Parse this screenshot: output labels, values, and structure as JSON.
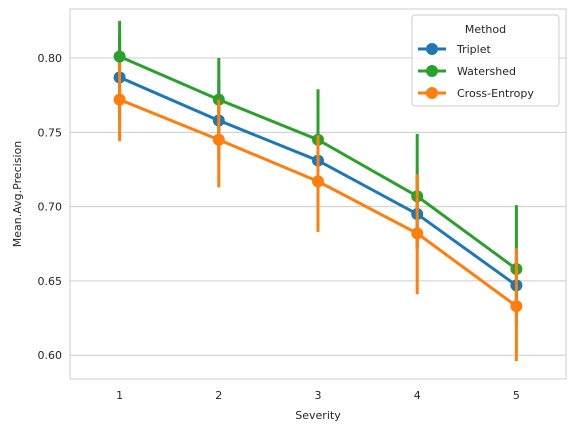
{
  "chart_data": {
    "type": "line",
    "xlabel": "Severity",
    "ylabel": "Mean.Avg.Precision",
    "categories": [
      "1",
      "2",
      "3",
      "4",
      "5"
    ],
    "ylim": [
      0.584,
      0.833
    ],
    "yticks": [
      "0.60",
      "0.65",
      "0.70",
      "0.75",
      "0.80"
    ],
    "grid": "horizontal",
    "legend": {
      "title": "Method",
      "placement": "top-right"
    },
    "series": [
      {
        "name": "Triplet",
        "color": "#1f77b4",
        "values": [
          0.787,
          0.758,
          0.731,
          0.695,
          0.647
        ],
        "ci_low": [
          0.757,
          0.732,
          0.707,
          0.671,
          0.627
        ],
        "ci_high": [
          0.815,
          0.785,
          0.752,
          0.722,
          0.667
        ]
      },
      {
        "name": "Watershed",
        "color": "#2ca02c",
        "values": [
          0.801,
          0.772,
          0.745,
          0.707,
          0.658
        ],
        "ci_low": [
          0.772,
          0.745,
          0.715,
          0.672,
          0.62
        ],
        "ci_high": [
          0.825,
          0.8,
          0.779,
          0.749,
          0.701
        ]
      },
      {
        "name": "Cross-Entropy",
        "color": "#ff7f0e",
        "values": [
          0.772,
          0.745,
          0.717,
          0.682,
          0.633
        ],
        "ci_low": [
          0.744,
          0.713,
          0.683,
          0.641,
          0.596
        ],
        "ci_high": [
          0.797,
          0.772,
          0.748,
          0.722,
          0.672
        ]
      }
    ]
  }
}
